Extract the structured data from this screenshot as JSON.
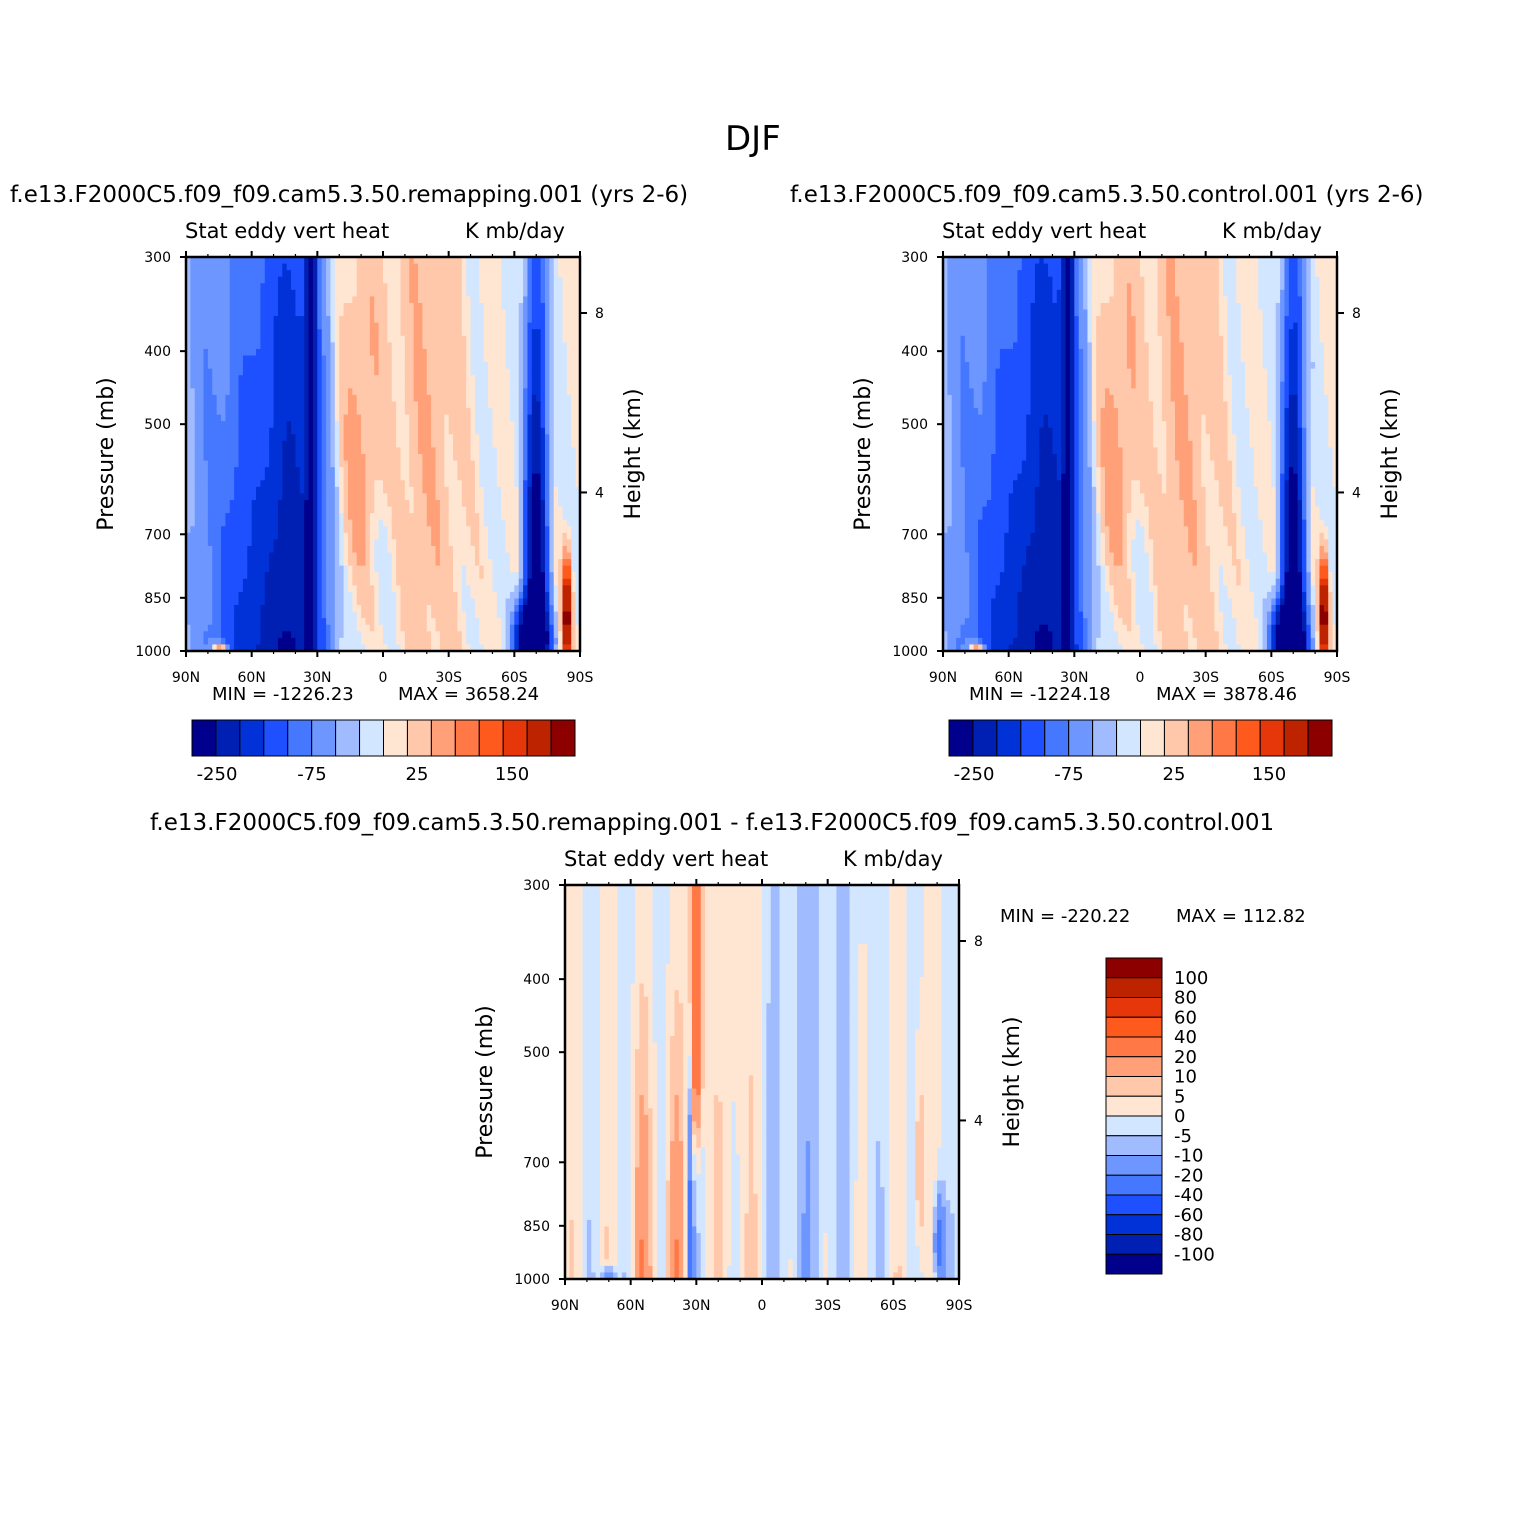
{
  "title": "DJF",
  "palettes": {
    "abs": [
      "#00008c",
      "#0020b4",
      "#0032d8",
      "#1e50ff",
      "#4678ff",
      "#6e96ff",
      "#a0bcff",
      "#d2e6ff",
      "#ffe6d2",
      "#ffc8aa",
      "#ffa078",
      "#ff7846",
      "#ff5a1e",
      "#e6370a",
      "#be2300",
      "#8c0000"
    ],
    "diff": [
      "#00008c",
      "#0020b4",
      "#0032d8",
      "#1e50ff",
      "#4678ff",
      "#6e96ff",
      "#a0bcff",
      "#d2e6ff",
      "#ffe6d2",
      "#ffc8aa",
      "#ffa078",
      "#ff7846",
      "#ff5a1e",
      "#e6370a",
      "#be2300",
      "#8c0000"
    ]
  },
  "chart_data": [
    {
      "id": "remapping",
      "type": "heatmap",
      "case_title": "f.e13.F2000C5.f09_f09.cam5.3.50.remapping.001 (yrs 2-6)",
      "left_string": "Stat eddy vert heat",
      "right_string": "K mb/day",
      "xlabel": "",
      "ylabel": "Pressure (mb)",
      "y2label": "Height (km)",
      "x_ticks": [
        "90N",
        "60N",
        "30N",
        "0",
        "30S",
        "60S",
        "90S"
      ],
      "y_ticks": [
        "300",
        "400",
        "500",
        "700",
        "850",
        "1000"
      ],
      "y2_ticks": [
        "8",
        "4"
      ],
      "xlim": [
        90,
        -90
      ],
      "ylim": [
        1000,
        300
      ],
      "min_text": "MIN = -1226.23",
      "max_text": "MAX = 3658.24",
      "min": -1226.23,
      "max": 3658.24,
      "colorbar_labels": [
        "-250",
        "-75",
        "25",
        "150"
      ],
      "palette": "abs",
      "scale": 1.0
    },
    {
      "id": "control",
      "type": "heatmap",
      "case_title": "f.e13.F2000C5.f09_f09.cam5.3.50.control.001 (yrs 2-6)",
      "left_string": "Stat eddy vert heat",
      "right_string": "K mb/day",
      "xlabel": "",
      "ylabel": "Pressure (mb)",
      "y2label": "Height (km)",
      "x_ticks": [
        "90N",
        "60N",
        "30N",
        "0",
        "30S",
        "60S",
        "90S"
      ],
      "y_ticks": [
        "300",
        "400",
        "500",
        "700",
        "850",
        "1000"
      ],
      "y2_ticks": [
        "8",
        "4"
      ],
      "xlim": [
        90,
        -90
      ],
      "ylim": [
        1000,
        300
      ],
      "min_text": "MIN = -1224.18",
      "max_text": "MAX = 3878.46",
      "min": -1224.18,
      "max": 3878.46,
      "colorbar_labels": [
        "-250",
        "-75",
        "25",
        "150"
      ],
      "palette": "abs",
      "scale": 1.0
    },
    {
      "id": "difference",
      "type": "heatmap",
      "case_title": "f.e13.F2000C5.f09_f09.cam5.3.50.remapping.001 - f.e13.F2000C5.f09_f09.cam5.3.50.control.001",
      "left_string": "Stat eddy vert heat",
      "right_string": "K mb/day",
      "xlabel": "",
      "ylabel": "Pressure (mb)",
      "y2label": "Height (km)",
      "x_ticks": [
        "90N",
        "60N",
        "30N",
        "0",
        "30S",
        "60S",
        "90S"
      ],
      "y_ticks": [
        "300",
        "400",
        "500",
        "700",
        "850",
        "1000"
      ],
      "y2_ticks": [
        "8",
        "4"
      ],
      "xlim": [
        90,
        -90
      ],
      "ylim": [
        1000,
        300
      ],
      "min_text": "MIN = -220.22",
      "max_text": "MAX = 112.82",
      "min": -220.22,
      "max": 112.82,
      "colorbar_labels": [
        "100",
        "80",
        "60",
        "40",
        "20",
        "10",
        "5",
        "0",
        "-5",
        "-10",
        "-20",
        "-40",
        "-60",
        "-80",
        "-100"
      ],
      "palette": "diff",
      "scale": 0.4
    }
  ]
}
